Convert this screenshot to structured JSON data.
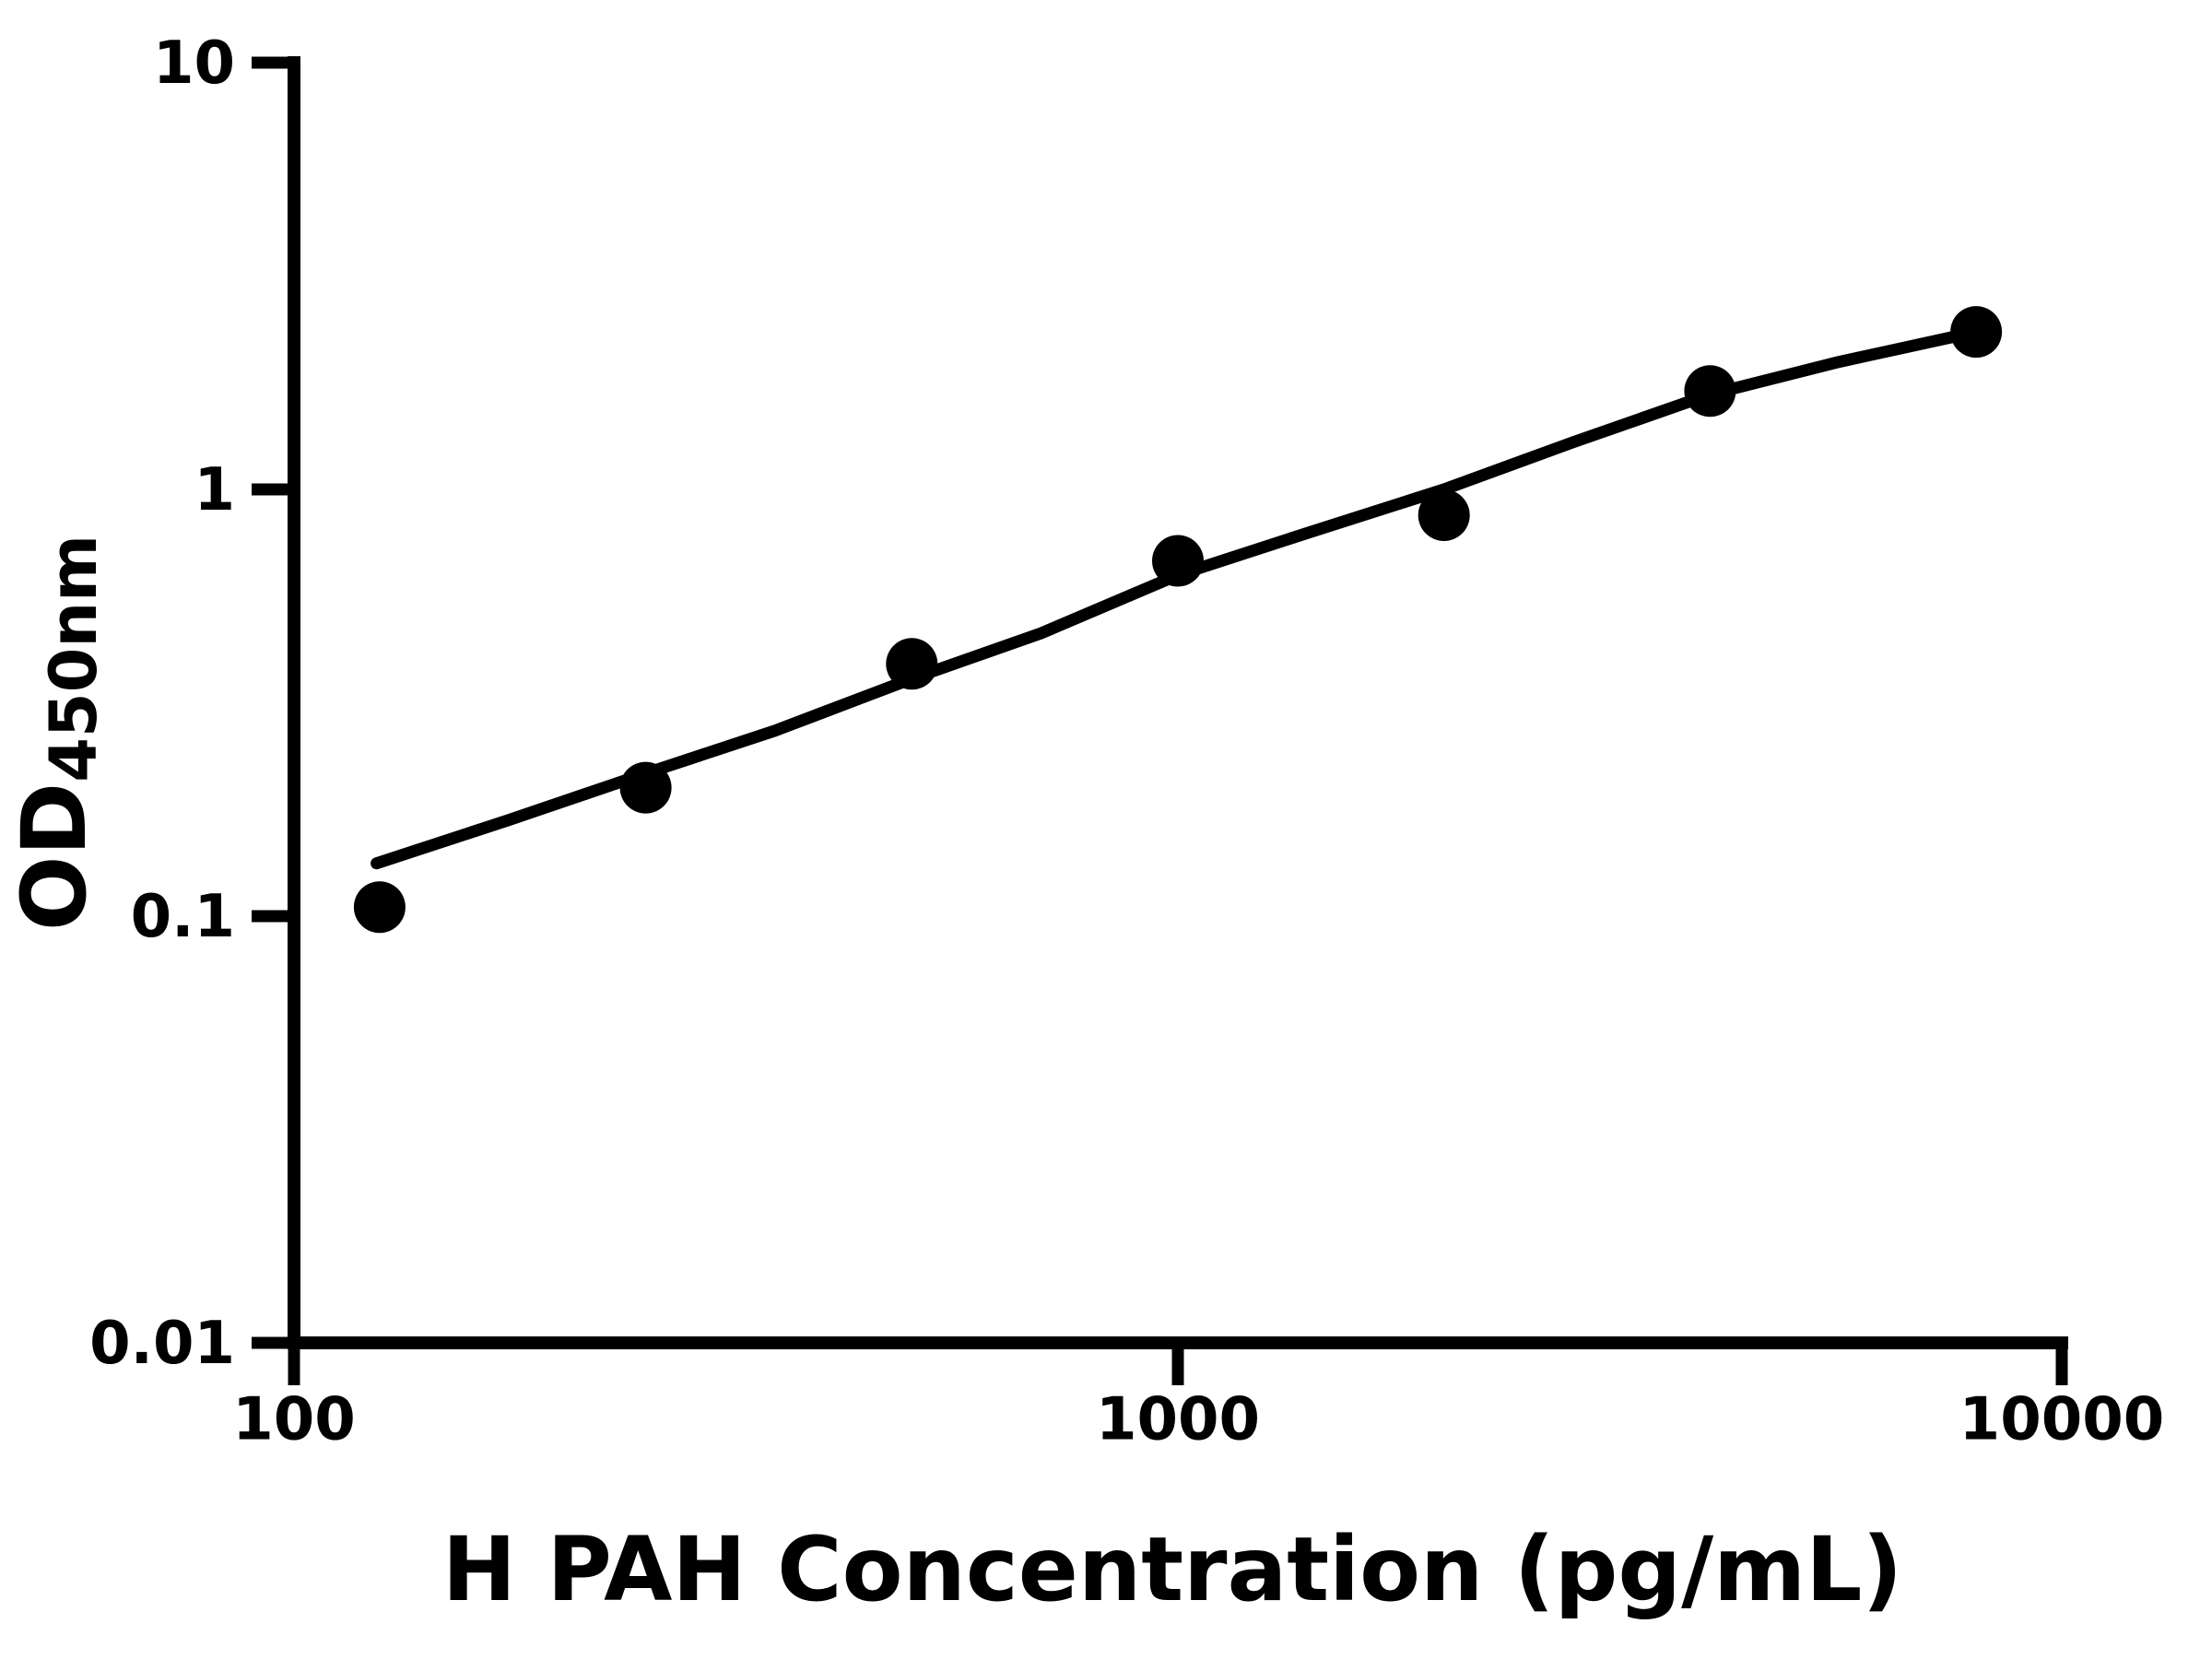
{
  "chart_data": {
    "type": "scatter",
    "title": "",
    "xlabel": "H PAH Concentration (pg/mL)",
    "ylabel": "OD450nm",
    "ylabel_main": "OD",
    "ylabel_sub": "450nm",
    "x_scale": "log",
    "y_scale": "log",
    "xlim": [
      100,
      10000
    ],
    "ylim": [
      0.01,
      10
    ],
    "grid": false,
    "legend": "none",
    "x_ticks": [
      {
        "value": 100,
        "label": "100"
      },
      {
        "value": 1000,
        "label": "1000"
      },
      {
        "value": 10000,
        "label": "10000"
      }
    ],
    "y_ticks": [
      {
        "value": 10,
        "label": "10"
      },
      {
        "value": 1,
        "label": "1"
      },
      {
        "value": 0.1,
        "label": "0.1"
      },
      {
        "value": 0.01,
        "label": "0.01"
      }
    ],
    "colors": {
      "foreground": "#000000",
      "background": "#ffffff",
      "marker": "#000000",
      "curve": "#000000"
    },
    "series": [
      {
        "name": "standard-points",
        "kind": "scatter",
        "marker": "filled-circle",
        "points": [
          {
            "x": 125,
            "y": 0.105
          },
          {
            "x": 250,
            "y": 0.2
          },
          {
            "x": 500,
            "y": 0.39
          },
          {
            "x": 1000,
            "y": 0.68
          },
          {
            "x": 2000,
            "y": 0.87
          },
          {
            "x": 4000,
            "y": 1.7
          },
          {
            "x": 8000,
            "y": 2.34
          }
        ]
      },
      {
        "name": "fitted-curve",
        "kind": "line",
        "points": [
          {
            "x": 124,
            "y": 0.133
          },
          {
            "x": 175,
            "y": 0.168
          },
          {
            "x": 250,
            "y": 0.216
          },
          {
            "x": 350,
            "y": 0.272
          },
          {
            "x": 500,
            "y": 0.36
          },
          {
            "x": 700,
            "y": 0.46
          },
          {
            "x": 1000,
            "y": 0.63
          },
          {
            "x": 1400,
            "y": 0.79
          },
          {
            "x": 2000,
            "y": 1.0
          },
          {
            "x": 2800,
            "y": 1.29
          },
          {
            "x": 4000,
            "y": 1.67
          },
          {
            "x": 5600,
            "y": 1.99
          },
          {
            "x": 8000,
            "y": 2.34
          }
        ]
      }
    ]
  }
}
